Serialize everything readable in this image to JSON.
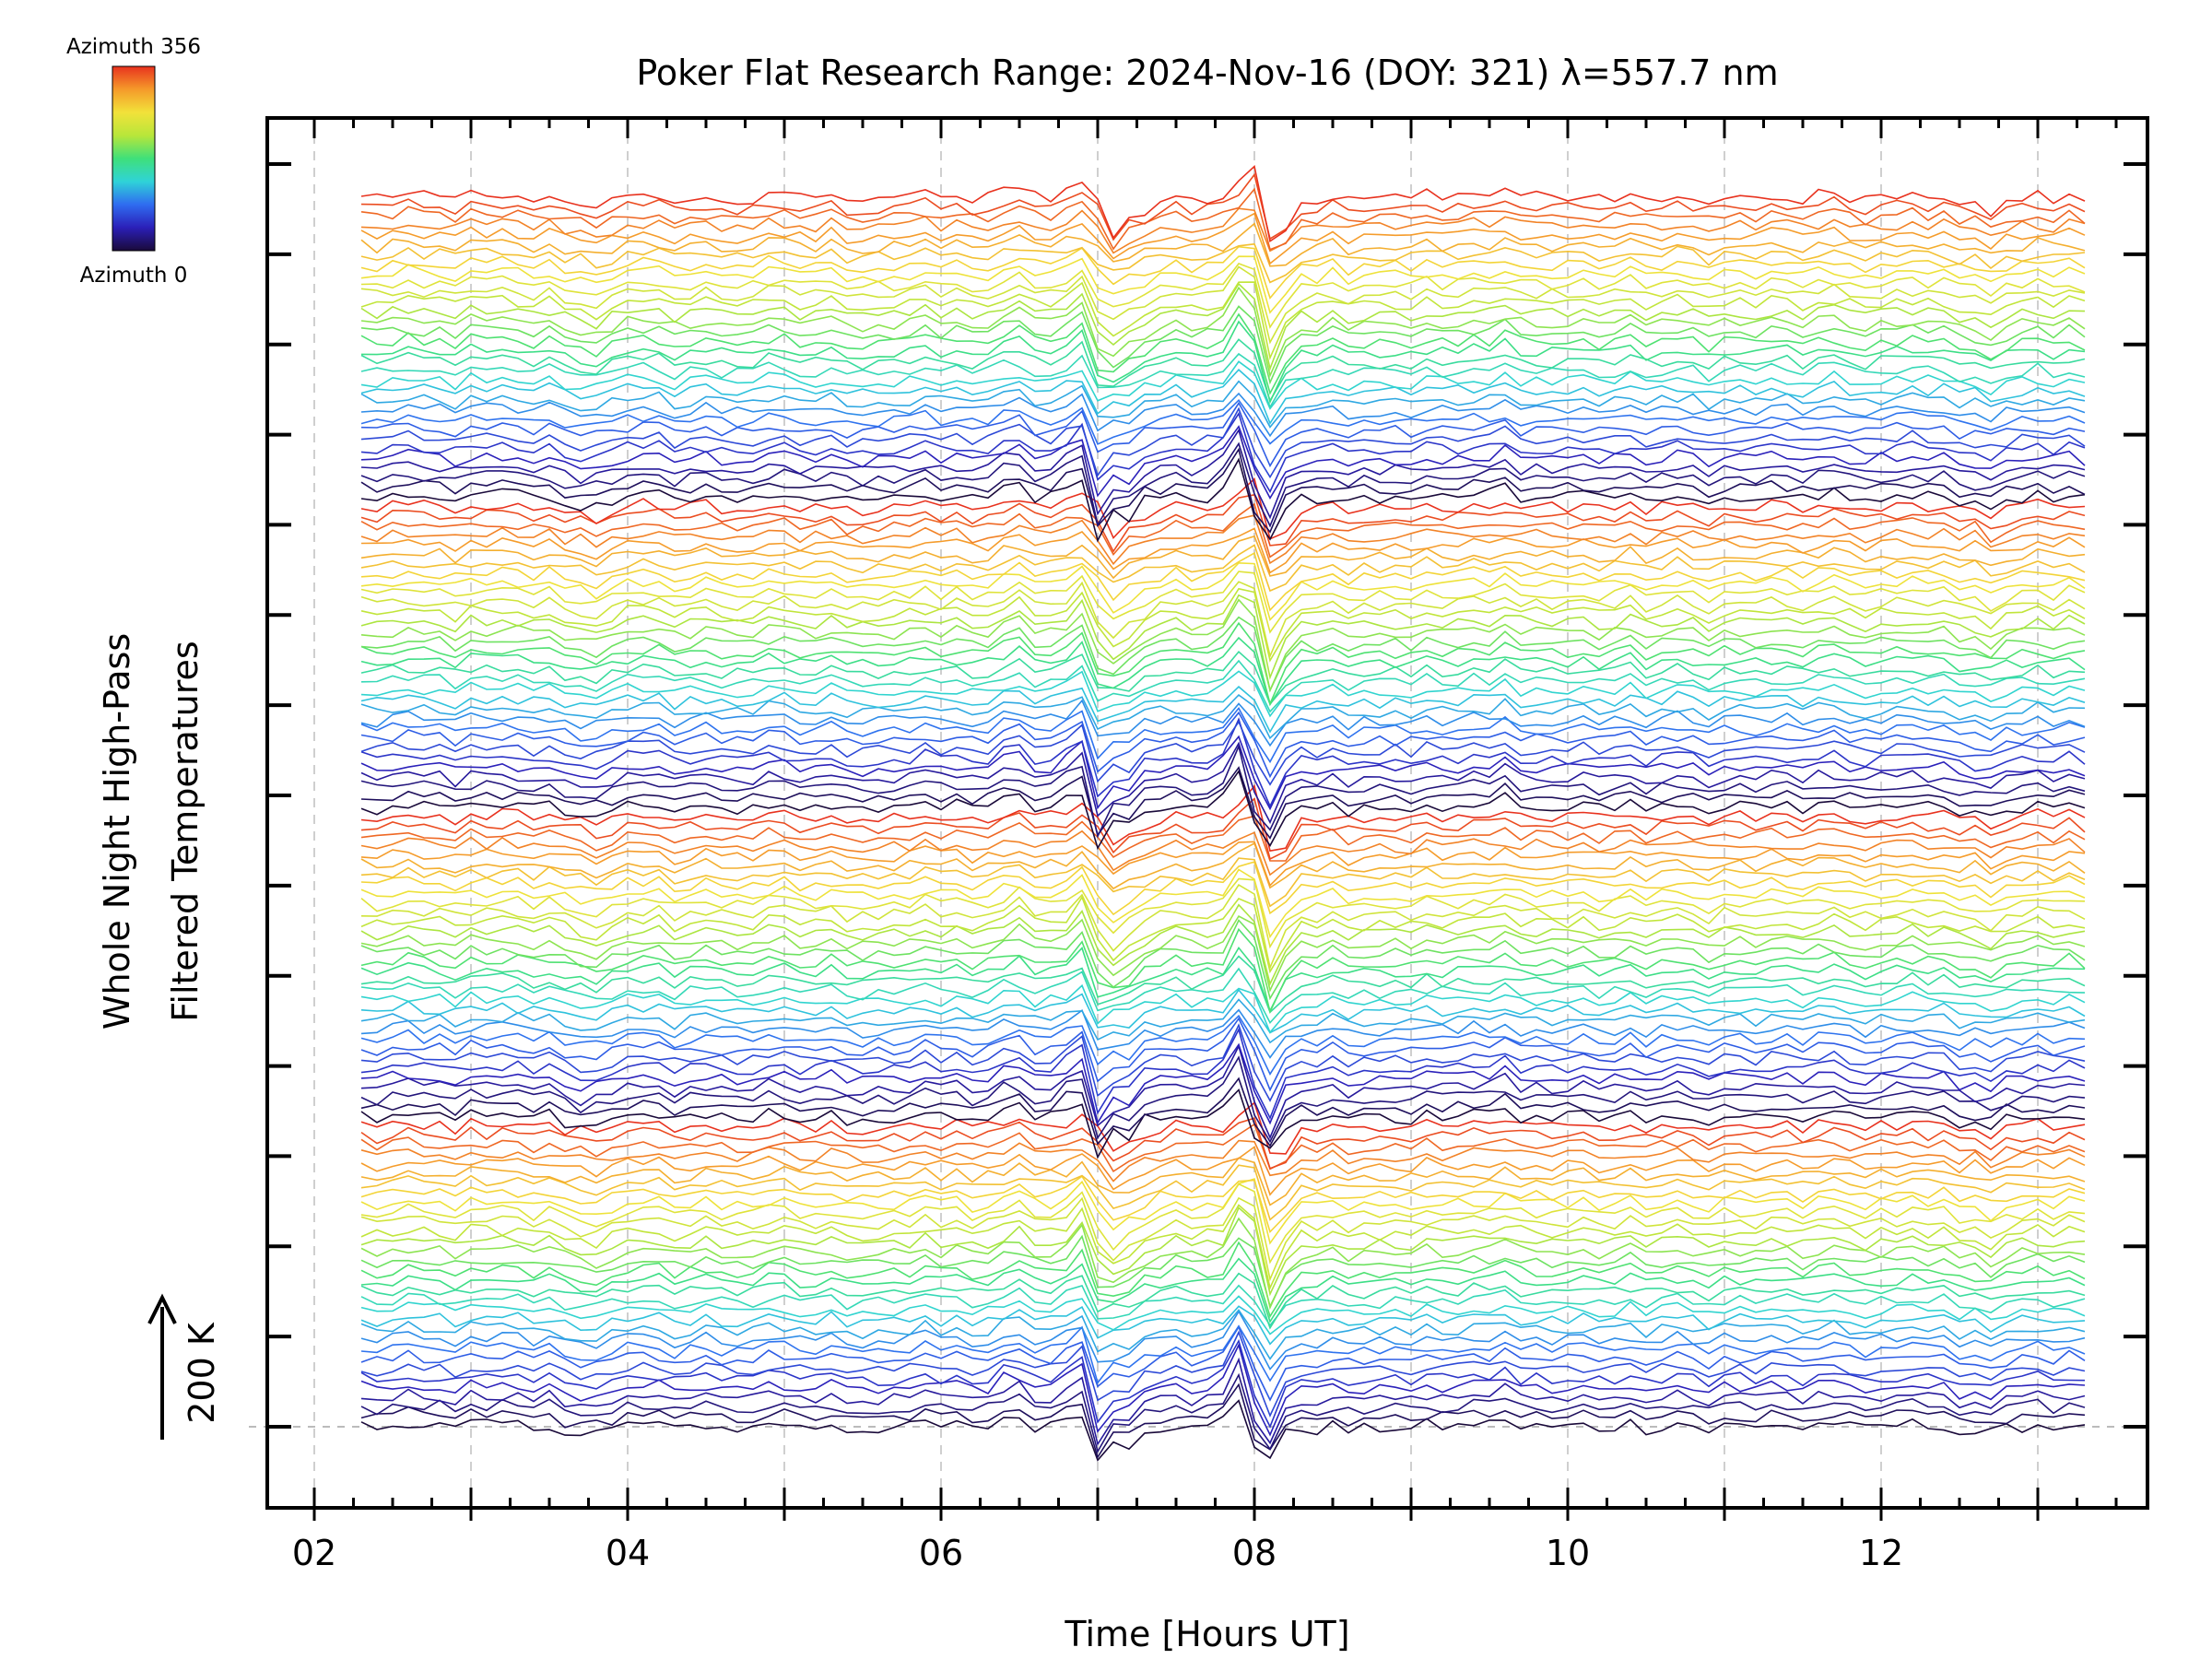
{
  "chart_data": {
    "type": "line",
    "title": "Poker Flat Research Range: 2024-Nov-16 (DOY: 321) λ=557.7 nm",
    "xlabel": "Time [Hours UT]",
    "ylabel_line1": "Whole Night High-Pass",
    "ylabel_line2": "Filtered Temperatures",
    "xlim": [
      1.7,
      13.7
    ],
    "x_ticks": [
      {
        "value": 2,
        "label": "02"
      },
      {
        "value": 4,
        "label": "04"
      },
      {
        "value": 6,
        "label": "06"
      },
      {
        "value": 8,
        "label": "08"
      },
      {
        "value": 10,
        "label": "10"
      },
      {
        "value": 12,
        "label": "12"
      }
    ],
    "gridlines_x": [
      2,
      3,
      4,
      5,
      6,
      7,
      8,
      9,
      10,
      11,
      12,
      13
    ],
    "scale_bar": {
      "label": "200 K",
      "value_k": 200
    },
    "colorbar": {
      "top_label": "Azimuth 356",
      "bottom_label": "Azimuth 0",
      "min": 0,
      "max": 356,
      "colormap": [
        "#1a0a3a",
        "#2b1fb8",
        "#2f6cf0",
        "#2fd3d8",
        "#3fe07a",
        "#b8e63a",
        "#f2e23a",
        "#f59a2a",
        "#e8321e"
      ]
    },
    "series_note": "Stacked azimuth traces (4 sectors, azimuth 0 at bottom to 356 at top of each sector)",
    "n_traces": 128,
    "x_start": 2.3,
    "x_end": 13.3,
    "time_step_hours": 0.1,
    "features": [
      {
        "t": 6.9,
        "amp": 35
      },
      {
        "t": 7.0,
        "amp": -55
      },
      {
        "t": 7.2,
        "amp": -20
      },
      {
        "t": 7.9,
        "amp": 45
      },
      {
        "t": 8.05,
        "amp": -60
      },
      {
        "t": 6.45,
        "amp": 12
      },
      {
        "t": 3.7,
        "amp": -14
      },
      {
        "t": 9.6,
        "amp": 10
      },
      {
        "t": 12.6,
        "amp": -14
      }
    ]
  }
}
